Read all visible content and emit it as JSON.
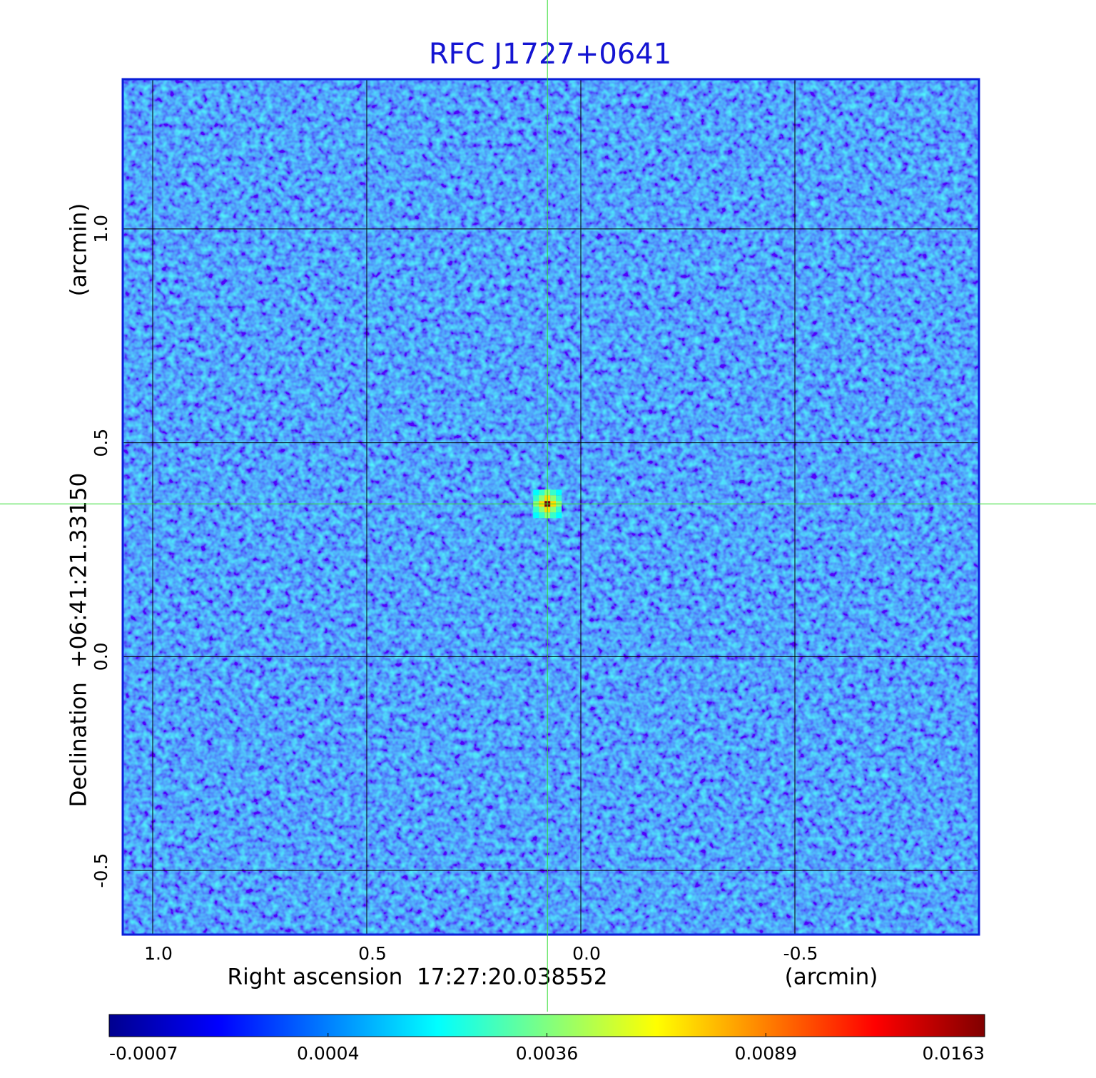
{
  "chart_data": {
    "type": "image",
    "title": "RFC J1727+0641",
    "x_label": "Right ascension  17:27:20.038552",
    "x_unit": "(arcmin)",
    "y_label": "Declination  +06:41:21.33150",
    "y_unit": "(arcmin)",
    "xlim": [
      1.07,
      -0.93
    ],
    "ylim": [
      -0.65,
      1.35
    ],
    "xticks": [
      {
        "value": 1,
        "label": "1.0"
      },
      0.5,
      {
        "value": 0,
        "label": "0.0"
      },
      -0.5
    ],
    "yticks": [
      {
        "value": 1,
        "label": "1.0"
      },
      0.5,
      {
        "value": 0,
        "label": "0.0"
      },
      -0.5
    ],
    "grid": true,
    "crosshair": {
      "x": 0.078,
      "y": 0.357,
      "color": "#33dd33"
    },
    "source": {
      "x": 0.078,
      "y": 0.357,
      "peak": 0.0163
    },
    "colorbar": {
      "ticks": [
        -0.0007,
        0.0004,
        0.0036,
        0.0089,
        0.0163
      ],
      "colormap": [
        "#00008f",
        "#0000ff",
        "#0080ff",
        "#00ffff",
        "#80ff80",
        "#ffff00",
        "#ff8000",
        "#ff0000",
        "#800000"
      ]
    }
  }
}
